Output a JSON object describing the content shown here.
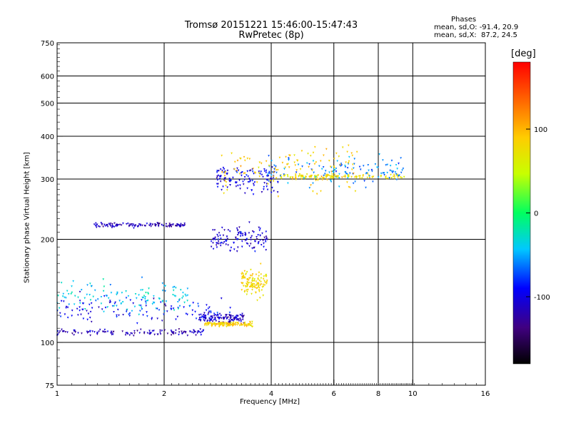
{
  "chart_data": {
    "type": "scatter",
    "title": "Tromsø 20151221 15:46:00-15:47:43",
    "subtitle": "RwPretec (8p)",
    "xlabel": "Frequency [MHz]",
    "ylabel": "Stationary phase Virtual Height [km]",
    "x_scale": "log",
    "y_scale": "log",
    "xlim": [
      1,
      16
    ],
    "ylim": [
      75,
      750
    ],
    "x_ticks": [
      1,
      2,
      4,
      6,
      8,
      10,
      16
    ],
    "y_ticks": [
      75,
      100,
      200,
      300,
      400,
      500,
      600,
      750
    ],
    "x_gridlines": [
      2,
      4,
      6,
      8,
      10
    ],
    "y_gridlines": [
      100,
      200,
      300,
      400,
      500,
      600
    ],
    "grid": true,
    "colorbar": {
      "label": "[deg]",
      "ticks": [
        100,
        0,
        -100
      ],
      "range": [
        -180,
        180
      ]
    },
    "phases": {
      "heading": "Phases",
      "line_o": "mean, sd,O: -91.4, 20.9",
      "line_x": "mean, sd,X:  87.2, 24.5"
    },
    "clusters": [
      {
        "name": "O low trace",
        "x_range": [
          1.0,
          2.6
        ],
        "y": 107,
        "spread": 0.02,
        "phase": -115
      },
      {
        "name": "O low scatter",
        "x_range": [
          1.0,
          3.3
        ],
        "y": 125,
        "spread": 0.09,
        "phase": -95
      },
      {
        "name": "O low cyan scatter",
        "x_range": [
          1.0,
          2.4
        ],
        "y": 135,
        "spread": 0.1,
        "phase": -40
      },
      {
        "name": "O rise trace",
        "x_range": [
          2.5,
          3.35
        ],
        "y": 118,
        "spread": 0.03,
        "phase": -110
      },
      {
        "name": "E sporadic trace",
        "x_range": [
          1.27,
          2.3
        ],
        "y": 220,
        "spread": 0.015,
        "phase": -115
      },
      {
        "name": "X low trace",
        "x_range": [
          2.6,
          3.55
        ],
        "y": 113,
        "spread": 0.015,
        "phase": 85
      },
      {
        "name": "X rise",
        "x_range": [
          3.3,
          3.9
        ],
        "y": 150,
        "spread": 0.08,
        "phase": 80
      },
      {
        "name": "O F-region cloud",
        "x_range": [
          2.7,
          3.9
        ],
        "y": 200,
        "spread": 0.08,
        "phase": -105
      },
      {
        "name": "O F-region upper cloud",
        "x_range": [
          2.8,
          4.2
        ],
        "y": 300,
        "spread": 0.1,
        "phase": -100
      },
      {
        "name": "X F trace",
        "x_range": [
          4.0,
          9.5
        ],
        "y": 305,
        "spread": 0.015,
        "phase": 75
      },
      {
        "name": "F spread",
        "x_range": [
          3.9,
          9.5
        ],
        "y": 320,
        "spread": 0.1,
        "phase": -60
      },
      {
        "name": "X scatter",
        "x_range": [
          2.9,
          7.0
        ],
        "y": 320,
        "spread": 0.15,
        "phase": 90
      }
    ]
  }
}
